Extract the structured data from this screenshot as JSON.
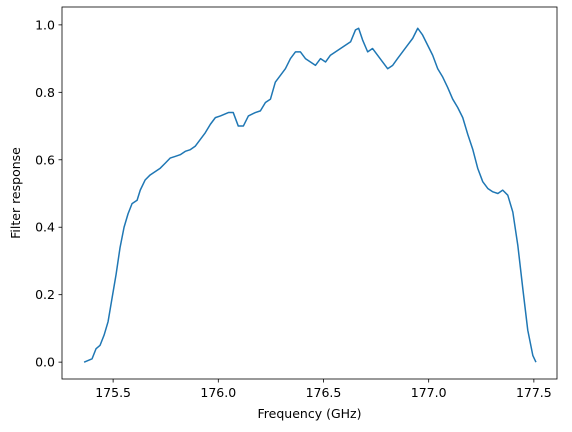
{
  "chart_data": {
    "type": "line",
    "xlabel": "Frequency (GHz)",
    "ylabel": "Filter response",
    "xlim": [
      175.257,
      177.61
    ],
    "ylim": [
      -0.05,
      1.053
    ],
    "xticks": [
      175.5,
      {
        "value": 176,
        "label": "176.0"
      },
      176.5,
      {
        "value": 177,
        "label": "177.0"
      },
      177.5
    ],
    "yticks": [
      {
        "value": 0,
        "label": "0.0"
      },
      0.2,
      0.4,
      0.6,
      0.8,
      {
        "value": 1,
        "label": "1.0"
      }
    ],
    "grid": false,
    "series": [
      {
        "color": "#1f77b4",
        "x": [
          175.362,
          175.4,
          175.419,
          175.438,
          175.457,
          175.476,
          175.495,
          175.514,
          175.533,
          175.552,
          175.571,
          175.59,
          175.614,
          175.629,
          175.652,
          175.676,
          175.7,
          175.724,
          175.748,
          175.771,
          175.795,
          175.819,
          175.843,
          175.867,
          175.89,
          175.914,
          175.938,
          175.962,
          175.986,
          176.01,
          176.048,
          176.071,
          176.095,
          176.119,
          176.143,
          176.176,
          176.2,
          176.224,
          176.248,
          176.271,
          176.295,
          176.319,
          176.343,
          176.367,
          176.39,
          176.414,
          176.438,
          176.462,
          176.486,
          176.51,
          176.533,
          176.557,
          176.581,
          176.605,
          176.629,
          176.652,
          176.667,
          176.686,
          176.71,
          176.733,
          176.757,
          176.781,
          176.805,
          176.829,
          176.852,
          176.876,
          176.9,
          176.924,
          176.948,
          176.971,
          176.995,
          177.019,
          177.043,
          177.067,
          177.09,
          177.114,
          177.138,
          177.162,
          177.186,
          177.21,
          177.233,
          177.257,
          177.281,
          177.305,
          177.329,
          177.352,
          177.376,
          177.4,
          177.424,
          177.448,
          177.471,
          177.495,
          177.51
        ],
        "values": [
          0,
          0.01,
          0.04,
          0.05,
          0.08,
          0.12,
          0.19,
          0.26,
          0.34,
          0.4,
          0.44,
          0.47,
          0.48,
          0.51,
          0.54,
          0.555,
          0.565,
          0.575,
          0.59,
          0.605,
          0.61,
          0.615,
          0.625,
          0.63,
          0.64,
          0.66,
          0.68,
          0.705,
          0.725,
          0.73,
          0.74,
          0.74,
          0.7,
          0.7,
          0.73,
          0.74,
          0.745,
          0.77,
          0.78,
          0.83,
          0.85,
          0.87,
          0.9,
          0.92,
          0.92,
          0.9,
          0.89,
          0.88,
          0.9,
          0.89,
          0.91,
          0.92,
          0.93,
          0.94,
          0.95,
          0.985,
          0.99,
          0.955,
          0.92,
          0.93,
          0.91,
          0.89,
          0.87,
          0.88,
          0.9,
          0.92,
          0.94,
          0.96,
          0.99,
          0.97,
          0.94,
          0.91,
          0.87,
          0.845,
          0.815,
          0.78,
          0.755,
          0.725,
          0.675,
          0.63,
          0.575,
          0.535,
          0.515,
          0.505,
          0.5,
          0.51,
          0.495,
          0.445,
          0.345,
          0.215,
          0.095,
          0.02,
          0
        ]
      }
    ]
  }
}
